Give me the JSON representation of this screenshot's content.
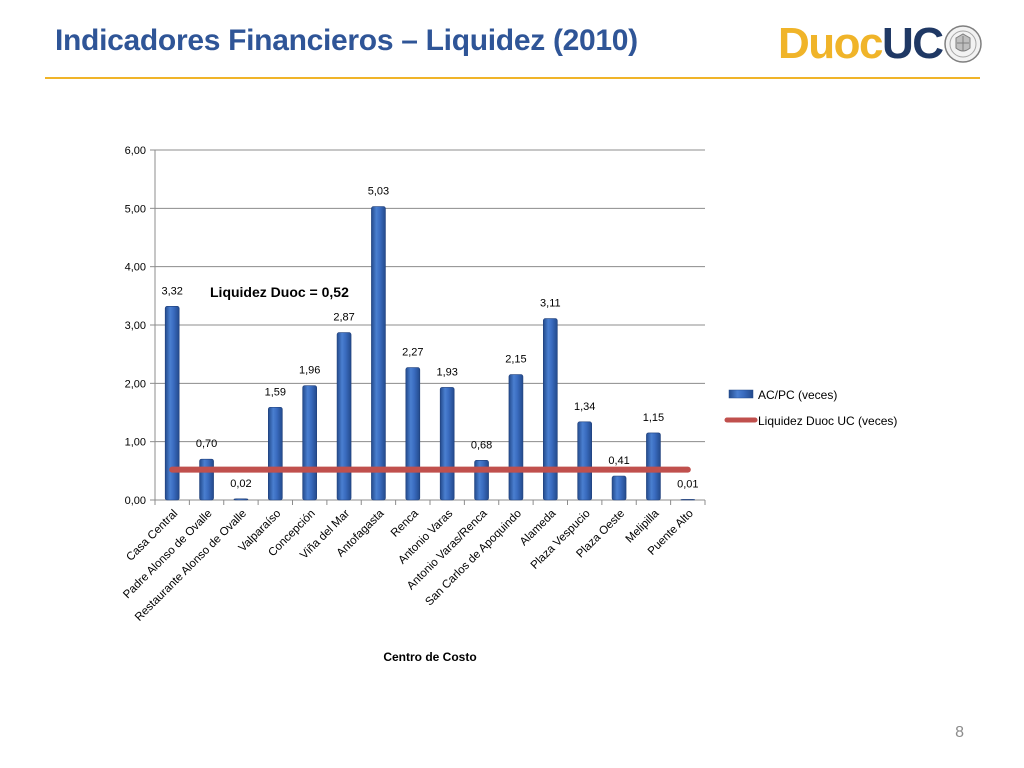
{
  "slide": {
    "title": "Indicadores Financieros – Liquidez (2010)",
    "page_number": "8",
    "logo": {
      "part1": "Duoc",
      "part2": "UC"
    }
  },
  "colors": {
    "title": "#2f5597",
    "rule": "#f0b429",
    "bar": "#3a6cc0",
    "bar_dark": "#234a8c",
    "line": "#c0504d",
    "logo_gold": "#f0b429",
    "logo_navy": "#1f3864"
  },
  "chart_data": {
    "type": "bar",
    "categories": [
      "Casa Central",
      "Padre Alonso de Ovalle",
      "Restaurante Alonso de Ovalle",
      "Valparaíso",
      "Concepción",
      "Viña del Mar",
      "Antofagasta",
      "Renca",
      "Antonio Varas",
      "Antonio Varas/Renca",
      "San Carlos de Apoquindo",
      "Alameda",
      "Plaza Vespucio",
      "Plaza Oeste",
      "Melipilla",
      "Puente Alto"
    ],
    "series": [
      {
        "name": "AC/PC (veces)",
        "type": "bar",
        "values": [
          3.32,
          0.7,
          0.02,
          1.59,
          1.96,
          2.87,
          5.03,
          2.27,
          1.93,
          0.68,
          2.15,
          3.11,
          1.34,
          0.41,
          1.15,
          0.01
        ],
        "labels": [
          "3,32",
          "0,70",
          "0,02",
          "1,59",
          "1,96",
          "2,87",
          "5,03",
          "2,27",
          "1,93",
          "0,68",
          "2,15",
          "3,11",
          "1,34",
          "0,41",
          "1,15",
          "0,01"
        ]
      },
      {
        "name": "Liquidez Duoc UC (veces)",
        "type": "line",
        "values": [
          0.52,
          0.52,
          0.52,
          0.52,
          0.52,
          0.52,
          0.52,
          0.52,
          0.52,
          0.52,
          0.52,
          0.52,
          0.52,
          0.52,
          0.52,
          0.52
        ]
      }
    ],
    "ylim": [
      0,
      6
    ],
    "yticks": [
      0,
      1,
      2,
      3,
      4,
      5,
      6
    ],
    "ytick_labels": [
      "0,00",
      "1,00",
      "2,00",
      "3,00",
      "4,00",
      "5,00",
      "6,00"
    ],
    "xlabel": "Centro de Costo",
    "ylabel": "",
    "annotation": "Liquidez Duoc = 0,52",
    "grid": true,
    "legend_position": "right"
  }
}
